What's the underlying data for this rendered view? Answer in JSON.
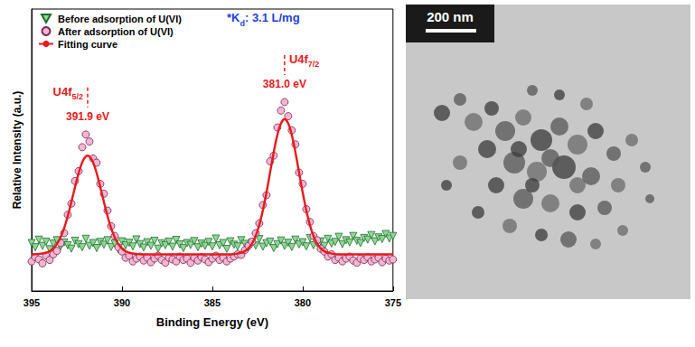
{
  "chart_data": {
    "type": "scatter",
    "x_label": "Binding Energy (eV)",
    "y_label": "Relative Intensity (a.u.)",
    "xlim": [
      395,
      375
    ],
    "xticks": [
      395,
      390,
      385,
      380,
      375
    ],
    "ylim": [
      0,
      10
    ],
    "yticks": [],
    "tick_labels": "x",
    "grid": false,
    "legend": "upper left",
    "series": [
      {
        "name": "Before adsorption of U(VI)",
        "type": "scatter",
        "marker": "triangle_down",
        "color": "#8fd694",
        "x": [
          395,
          394.8,
          394.6,
          394.4,
          394.2,
          394,
          393.8,
          393.6,
          393.4,
          393.2,
          393,
          392.8,
          392.6,
          392.4,
          392.2,
          392,
          391.8,
          391.6,
          391.4,
          391.2,
          391,
          390.8,
          390.6,
          390.4,
          390.2,
          390,
          389.8,
          389.6,
          389.4,
          389.2,
          389,
          388.8,
          388.6,
          388.4,
          388.2,
          388,
          387.8,
          387.6,
          387.4,
          387.2,
          387,
          386.8,
          386.6,
          386.4,
          386.2,
          386,
          385.8,
          385.6,
          385.4,
          385.2,
          385,
          384.8,
          384.6,
          384.4,
          384.2,
          384,
          383.8,
          383.6,
          383.4,
          383.2,
          383,
          382.8,
          382.6,
          382.4,
          382.2,
          382,
          381.8,
          381.6,
          381.4,
          381.2,
          381,
          380.8,
          380.6,
          380.4,
          380.2,
          380,
          379.8,
          379.6,
          379.4,
          379.2,
          379,
          378.8,
          378.6,
          378.4,
          378.2,
          378,
          377.8,
          377.6,
          377.4,
          377.2,
          377,
          376.8,
          376.6,
          376.4,
          376.2,
          376,
          375.8,
          375.6,
          375.4,
          375.2,
          375
        ],
        "values": [
          1.7,
          1.55,
          1.82,
          1.6,
          1.75,
          1.48,
          1.68,
          1.8,
          1.58,
          1.72,
          1.62,
          1.5,
          1.78,
          1.66,
          1.55,
          1.85,
          1.6,
          1.7,
          1.52,
          1.74,
          1.64,
          1.8,
          1.56,
          1.68,
          1.47,
          1.76,
          1.62,
          1.71,
          1.58,
          1.83,
          1.66,
          1.54,
          1.73,
          1.6,
          1.78,
          1.5,
          1.69,
          1.62,
          1.75,
          1.57,
          1.81,
          1.65,
          1.52,
          1.7,
          1.63,
          1.77,
          1.55,
          1.68,
          1.6,
          1.74,
          1.58,
          1.86,
          1.62,
          1.7,
          1.49,
          1.76,
          1.64,
          1.58,
          1.8,
          1.67,
          1.55,
          1.72,
          1.61,
          1.84,
          1.57,
          1.69,
          1.75,
          1.52,
          1.66,
          1.79,
          1.6,
          1.71,
          1.56,
          1.82,
          1.65,
          1.73,
          1.58,
          1.88,
          1.62,
          1.7,
          1.76,
          1.6,
          1.85,
          1.68,
          1.74,
          1.92,
          1.66,
          1.8,
          1.72,
          1.95,
          1.78,
          1.7,
          1.88,
          1.82,
          1.98,
          1.76,
          1.9,
          1.84,
          2.02,
          1.86,
          1.95
        ]
      },
      {
        "name": "After adsorption of U(VI)",
        "type": "scatter",
        "marker": "circle",
        "color": "#f2b6d4",
        "x": [
          395,
          394.8,
          394.6,
          394.4,
          394.2,
          394,
          393.8,
          393.6,
          393.4,
          393.2,
          393,
          392.8,
          392.6,
          392.4,
          392.2,
          392,
          391.8,
          391.6,
          391.4,
          391.2,
          391,
          390.8,
          390.6,
          390.4,
          390.2,
          390,
          389.8,
          389.6,
          389.4,
          389.2,
          389,
          388.8,
          388.6,
          388.4,
          388.2,
          388,
          387.8,
          387.6,
          387.4,
          387.2,
          387,
          386.8,
          386.6,
          386.4,
          386.2,
          386,
          385.8,
          385.6,
          385.4,
          385.2,
          385,
          384.8,
          384.6,
          384.4,
          384.2,
          384,
          383.8,
          383.6,
          383.4,
          383.2,
          383,
          382.8,
          382.6,
          382.4,
          382.2,
          382,
          381.8,
          381.6,
          381.4,
          381.2,
          381,
          380.8,
          380.6,
          380.4,
          380.2,
          380,
          379.8,
          379.6,
          379.4,
          379.2,
          379,
          378.8,
          378.6,
          378.4,
          378.2,
          378,
          377.8,
          377.6,
          377.4,
          377.2,
          377,
          376.8,
          376.6,
          376.4,
          376.2,
          376,
          375.8,
          375.6,
          375.4,
          375.2,
          375
        ],
        "values": [
          1.05,
          1.2,
          1.12,
          0.98,
          1.25,
          1.1,
          1.3,
          1.42,
          1.7,
          2.05,
          2.7,
          3.1,
          3.9,
          4.25,
          5.1,
          5.55,
          5.3,
          4.7,
          4.55,
          3.8,
          3.45,
          2.85,
          2.3,
          1.95,
          1.55,
          1.4,
          1.18,
          1.25,
          1.05,
          1.15,
          1.22,
          1.08,
          1.18,
          1.02,
          1.15,
          1.25,
          1.1,
          1.0,
          1.18,
          1.12,
          1.05,
          1.22,
          1.1,
          1.15,
          1.0,
          1.18,
          1.08,
          1.2,
          1.12,
          1.02,
          1.15,
          1.25,
          1.1,
          1.18,
          1.05,
          1.15,
          1.22,
          1.3,
          1.28,
          1.45,
          1.6,
          1.75,
          2.05,
          2.4,
          3.05,
          3.4,
          4.6,
          4.8,
          5.8,
          6.4,
          6.7,
          6.2,
          5.7,
          5.2,
          4.2,
          3.8,
          2.9,
          2.45,
          1.95,
          1.8,
          1.5,
          1.4,
          1.22,
          1.3,
          1.1,
          1.18,
          1.05,
          1.15,
          1.22,
          1.08,
          1.0,
          1.15,
          1.1,
          1.2,
          1.05,
          1.12,
          1.18,
          1.02,
          1.15,
          1.08,
          1.12
        ]
      },
      {
        "name": "Fitting curve",
        "type": "line",
        "line_style": "solid",
        "color": "#e8191c",
        "x": [
          395,
          394.9,
          394.65,
          394.4,
          394.15,
          393.9,
          393.65,
          393.4,
          393.15,
          392.9,
          392.65,
          392.4,
          392.15,
          391.9,
          391.65,
          391.4,
          391.15,
          390.9,
          390.65,
          390.4,
          390.15,
          389.9,
          389.65,
          389.4,
          389.15,
          388.9,
          384,
          383.75,
          383.5,
          383.25,
          383,
          382.75,
          382.5,
          382.25,
          382,
          381.75,
          381.5,
          381.25,
          381,
          380.75,
          380.5,
          380.25,
          380,
          379.75,
          379.5,
          379.25,
          379,
          378.75,
          378.5,
          378.25,
          378,
          375
        ],
        "values": [
          1.3,
          1.3,
          1.31,
          1.33,
          1.37,
          1.45,
          1.62,
          1.9,
          2.33,
          2.9,
          3.55,
          4.18,
          4.63,
          4.8,
          4.63,
          4.18,
          3.55,
          2.9,
          2.33,
          1.9,
          1.62,
          1.45,
          1.37,
          1.33,
          1.31,
          1.3,
          1.3,
          1.31,
          1.34,
          1.39,
          1.51,
          1.74,
          2.13,
          2.72,
          3.5,
          4.39,
          5.25,
          5.87,
          6.1,
          5.87,
          5.25,
          4.39,
          3.5,
          2.72,
          2.13,
          1.74,
          1.51,
          1.39,
          1.34,
          1.31,
          1.3,
          1.3
        ]
      }
    ],
    "annotations": [
      {
        "x": 391.9,
        "text": "U4f",
        "subscript": "5/2",
        "label": "391.9 eV"
      },
      {
        "x": 381.0,
        "text": "U4f",
        "subscript": "7/2",
        "label": "381.0 eV"
      }
    ],
    "note": {
      "text": "*K",
      "subscript": "d",
      "after": ": 3.1 L/mg"
    }
  },
  "image": {
    "scale_bar": "200 nm"
  }
}
